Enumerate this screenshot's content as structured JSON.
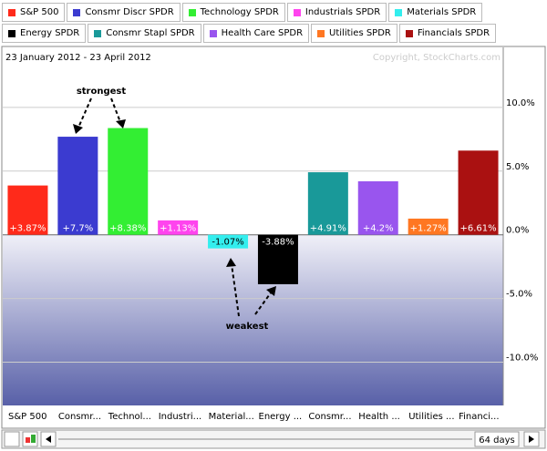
{
  "chart_data": {
    "type": "bar",
    "legend": [
      {
        "name": "S&P 500",
        "color": "#ff2a1a"
      },
      {
        "name": "Consmr Discr SPDR",
        "color": "#3b3bd0"
      },
      {
        "name": "Technology SPDR",
        "color": "#33ee33"
      },
      {
        "name": "Industrials SPDR",
        "color": "#ff44ee"
      },
      {
        "name": "Materials SPDR",
        "color": "#33eeee"
      },
      {
        "name": "Energy SPDR",
        "color": "#000000"
      },
      {
        "name": "Consmr Stapl SPDR",
        "color": "#199999"
      },
      {
        "name": "Health Care SPDR",
        "color": "#9955ee"
      },
      {
        "name": "Utilities SPDR",
        "color": "#ff7722"
      },
      {
        "name": "Financials SPDR",
        "color": "#aa1111"
      }
    ],
    "subtitle": "23 January 2012 - 23 April 2012",
    "credit": "Copyright, StockCharts.com",
    "categories": [
      "S&P 500",
      "Consmr...",
      "Technol...",
      "Industri...",
      "Material...",
      "Energy ...",
      "Consmr...",
      "Health ...",
      "Utilities ...",
      "Financi..."
    ],
    "values": [
      3.87,
      7.7,
      8.38,
      1.13,
      -1.07,
      -3.88,
      4.91,
      4.2,
      1.27,
      6.61
    ],
    "value_labels": [
      "+3.87%",
      "+7.7%",
      "+8.38%",
      "+1.13%",
      "-1.07%",
      "-3.88%",
      "+4.91%",
      "+4.2%",
      "+1.27%",
      "+6.61%"
    ],
    "colors": [
      "#ff2a1a",
      "#3b3bd0",
      "#33ee33",
      "#ff44ee",
      "#33eeee",
      "#000000",
      "#199999",
      "#9955ee",
      "#ff7722",
      "#aa1111"
    ],
    "ylim": [
      -13.4,
      14.5
    ],
    "yticks": [
      {
        "value": 10,
        "label": "10.0%"
      },
      {
        "value": 5,
        "label": "5.0%"
      },
      {
        "value": 0,
        "label": "0.0%"
      },
      {
        "value": -5,
        "label": "-5.0%"
      },
      {
        "value": -10,
        "label": "-10.0%"
      }
    ],
    "annotations": [
      "strongest",
      "weakest"
    ],
    "period": "64 days"
  }
}
